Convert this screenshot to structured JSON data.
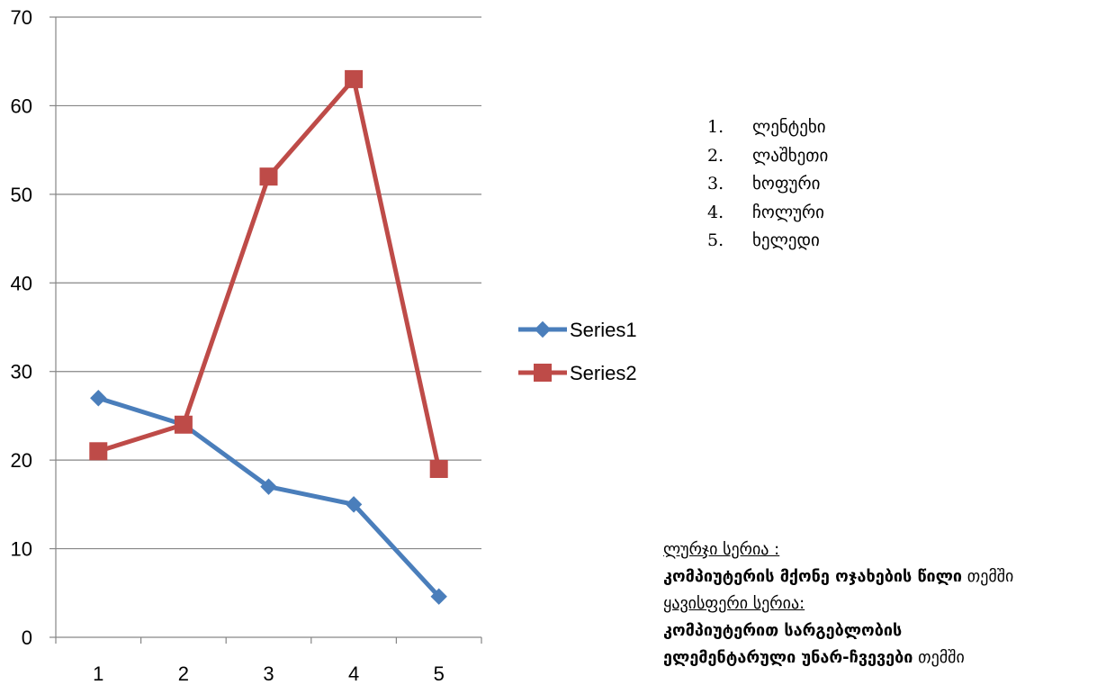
{
  "chart_data": {
    "type": "line",
    "categories": [
      "1",
      "2",
      "3",
      "4",
      "5"
    ],
    "series": [
      {
        "name": "Series1",
        "values": [
          27,
          24,
          17,
          15,
          4.6
        ],
        "color": "#4a7ebb",
        "marker": "diamond"
      },
      {
        "name": "Series2",
        "values": [
          21,
          24,
          52,
          63,
          19
        ],
        "color": "#be4b48",
        "marker": "square"
      }
    ],
    "ylim": [
      0,
      70
    ],
    "yticks": [
      "0",
      "10",
      "20",
      "30",
      "40",
      "50",
      "60",
      "70"
    ],
    "grid": true,
    "legend_position": "right"
  },
  "numbered_list": [
    {
      "num": "1.",
      "text": "ლენტეხი"
    },
    {
      "num": "2.",
      "text": "ლაშხეთი"
    },
    {
      "num": "3.",
      "text": "ხოფური"
    },
    {
      "num": "4.",
      "text": "ჩოლური"
    },
    {
      "num": "5.",
      "text": "ხელედი"
    }
  ],
  "notes": {
    "blue_label": "ლურჯი სერია :",
    "blue_bold": "კომპიუტერის მქონე ოჯახების წილი",
    "blue_suffix": " თემში",
    "red_label": "ყავისფერი სერია:",
    "red_bold_1": "კომპიუტერით სარგებლობის",
    "red_bold_2": "ელემენტარული უნარ-ჩვევები",
    "red_suffix": " თემში"
  }
}
